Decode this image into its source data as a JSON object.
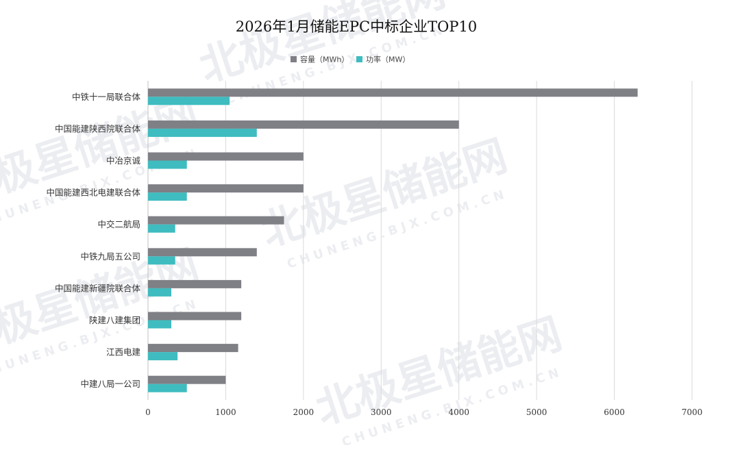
{
  "watermark": {
    "brand": "北极星储能网",
    "url": "CHUNENG.BJX.COM.CN"
  },
  "colors": {
    "capacity": "#7f7f86",
    "power": "#3fbcbf"
  },
  "chart_data": {
    "type": "bar",
    "orientation": "horizontal",
    "title": "2026年1月储能EPC中标企业TOP10",
    "categories": [
      "中铁十一局联合体",
      "中国能建陕西院联合体",
      "中冶京诚",
      "中国能建西北电建联合体",
      "中交二航局",
      "中铁九局五公司",
      "中国能建新疆院联合体",
      "陕建八建集团",
      "江西电建",
      "中建八局一公司"
    ],
    "series": [
      {
        "name": "容量（MWh）",
        "color": "#7f7f86",
        "values": [
          6300,
          4000,
          2000,
          2000,
          1750,
          1400,
          1200,
          1200,
          1160,
          1000
        ]
      },
      {
        "name": "功率（MW）",
        "color": "#3fbcbf",
        "values": [
          1050,
          1400,
          500,
          500,
          350,
          350,
          300,
          300,
          380,
          500
        ]
      }
    ],
    "xlim": [
      0,
      7000
    ],
    "xticks": [
      0,
      1000,
      2000,
      3000,
      4000,
      5000,
      6000,
      7000
    ],
    "grid": true,
    "legend": "top-center"
  }
}
